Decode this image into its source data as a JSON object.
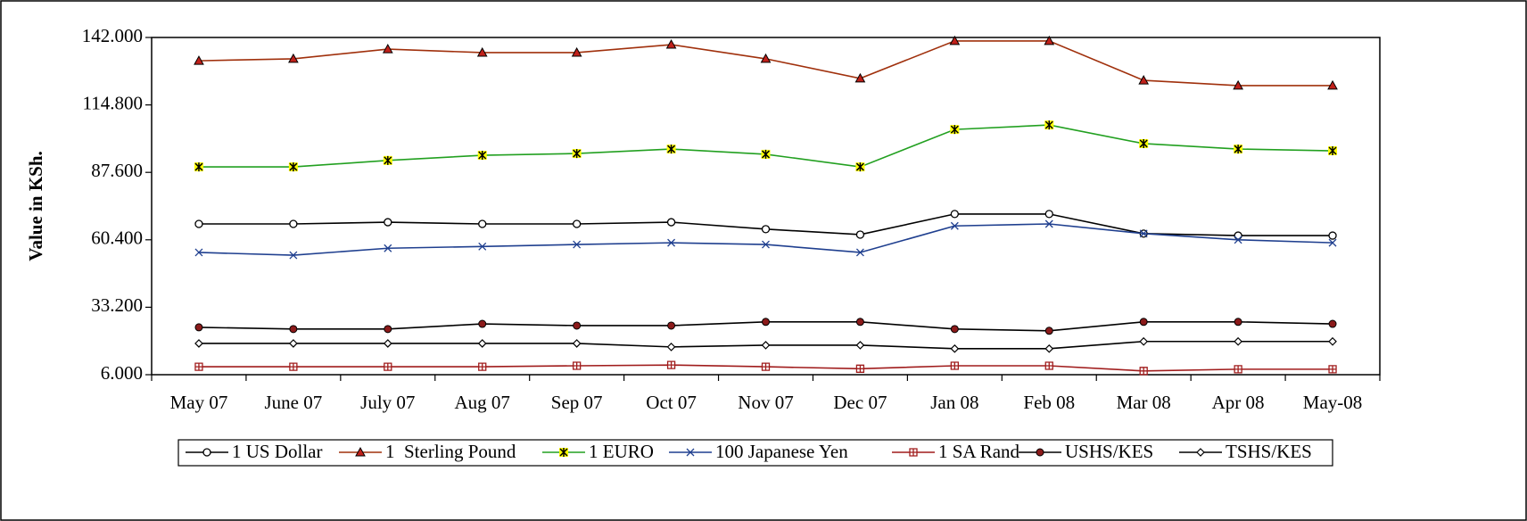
{
  "chart_data": {
    "type": "line",
    "y_label": "Value in KSh.",
    "categories": [
      "May 07",
      "June 07",
      "July 07",
      "Aug 07",
      "Sep 07",
      "Oct 07",
      "Nov 07",
      "Dec 07",
      "Jan 08",
      "Feb 08",
      "Mar 08",
      "Apr 08",
      "May-08"
    ],
    "ylim": [
      6,
      142
    ],
    "yticks": [
      {
        "value": 6,
        "label": "6.000"
      },
      {
        "value": 33.2,
        "label": "33.200"
      },
      {
        "value": 60.4,
        "label": "60.400"
      },
      {
        "value": 87.6,
        "label": "87.600"
      },
      {
        "value": 114.8,
        "label": "114.800"
      },
      {
        "value": 142,
        "label": "142.000"
      }
    ],
    "grid": false,
    "legend": "bottom",
    "series": [
      {
        "name": "1 US Dollar",
        "color": "#000000",
        "marker": "circle",
        "values": [
          66.8,
          66.8,
          67.5,
          66.8,
          66.8,
          67.5,
          64.7,
          62.5,
          70.8,
          70.8,
          62.9,
          62.1,
          62.1
        ]
      },
      {
        "name": "1  Sterling Pound",
        "color": "#a0300c",
        "marker": "triangle",
        "values": [
          132.6,
          133.4,
          137.3,
          135.9,
          135.9,
          139.1,
          133.4,
          125.5,
          140.6,
          140.6,
          124.7,
          122.6,
          122.6
        ]
      },
      {
        "name": "1 EURO",
        "color": "#22a020",
        "marker": "star",
        "values": [
          89.8,
          89.8,
          92.4,
          94.5,
          95.2,
          97.0,
          94.9,
          89.8,
          104.9,
          106.7,
          99.2,
          97.0,
          96.3
        ]
      },
      {
        "name": "100 Japanese Yen",
        "color": "#1f3f8f",
        "marker": "x",
        "values": [
          55.3,
          54.2,
          57.0,
          57.7,
          58.5,
          59.2,
          58.5,
          55.3,
          66.0,
          66.8,
          62.9,
          60.4,
          59.2
        ]
      },
      {
        "name": "1 SA Rand",
        "color": "#a01c1c",
        "marker": "square",
        "values": [
          9.2,
          9.2,
          9.2,
          9.2,
          9.6,
          9.9,
          9.2,
          8.4,
          9.6,
          9.6,
          7.5,
          8.2,
          8.2
        ]
      },
      {
        "name": "USHS/KES",
        "color": "#000000",
        "marker": "dot",
        "values": [
          25.1,
          24.4,
          24.4,
          26.5,
          25.8,
          25.8,
          27.3,
          27.3,
          24.4,
          23.7,
          27.3,
          27.3,
          26.5
        ]
      },
      {
        "name": "TSHS/KES",
        "color": "#000000",
        "marker": "diamond",
        "values": [
          18.6,
          18.6,
          18.6,
          18.6,
          18.6,
          17.2,
          17.9,
          17.9,
          16.5,
          16.5,
          19.4,
          19.4,
          19.4
        ]
      }
    ]
  }
}
